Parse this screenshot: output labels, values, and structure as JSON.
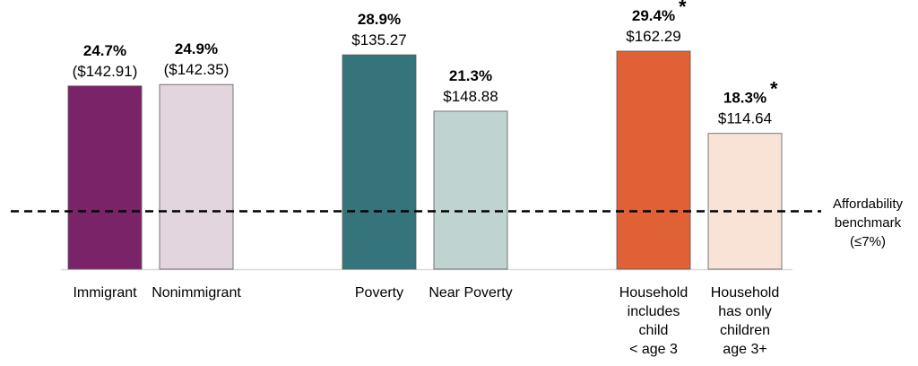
{
  "chart_data": {
    "type": "bar",
    "title": "",
    "xlabel": "",
    "ylabel": "",
    "ylim": [
      0,
      30
    ],
    "grid": false,
    "categories": [
      [
        "Immigrant"
      ],
      [
        "Nonimmigrant"
      ],
      [
        "Poverty"
      ],
      [
        "Near Poverty"
      ],
      [
        "Household",
        "includes",
        "child",
        "< age 3"
      ],
      [
        "Household",
        "has only",
        "children",
        "age 3+"
      ]
    ],
    "groups": [
      [
        0,
        1
      ],
      [
        2,
        3
      ],
      [
        4,
        5
      ]
    ],
    "values": [
      24.7,
      24.9,
      28.9,
      21.3,
      29.4,
      18.3
    ],
    "value_labels": [
      "24.7%",
      "24.9%",
      "28.9%",
      "21.3%",
      "29.4%",
      "18.3%"
    ],
    "cost_labels": [
      "($142.91)",
      "($142.35)",
      "$135.27",
      "$148.88",
      "$162.29",
      "$114.64"
    ],
    "significance": [
      "",
      "",
      "",
      "",
      "*",
      "*"
    ],
    "colors": [
      "#7b2369",
      "#e2d5dd",
      "#35747b",
      "#bfd4d0",
      "#e06136",
      "#f8e3d6"
    ],
    "benchmark": {
      "value": 7,
      "label_lines": [
        "Affordability",
        "benchmark",
        "(≤7%)"
      ]
    }
  }
}
